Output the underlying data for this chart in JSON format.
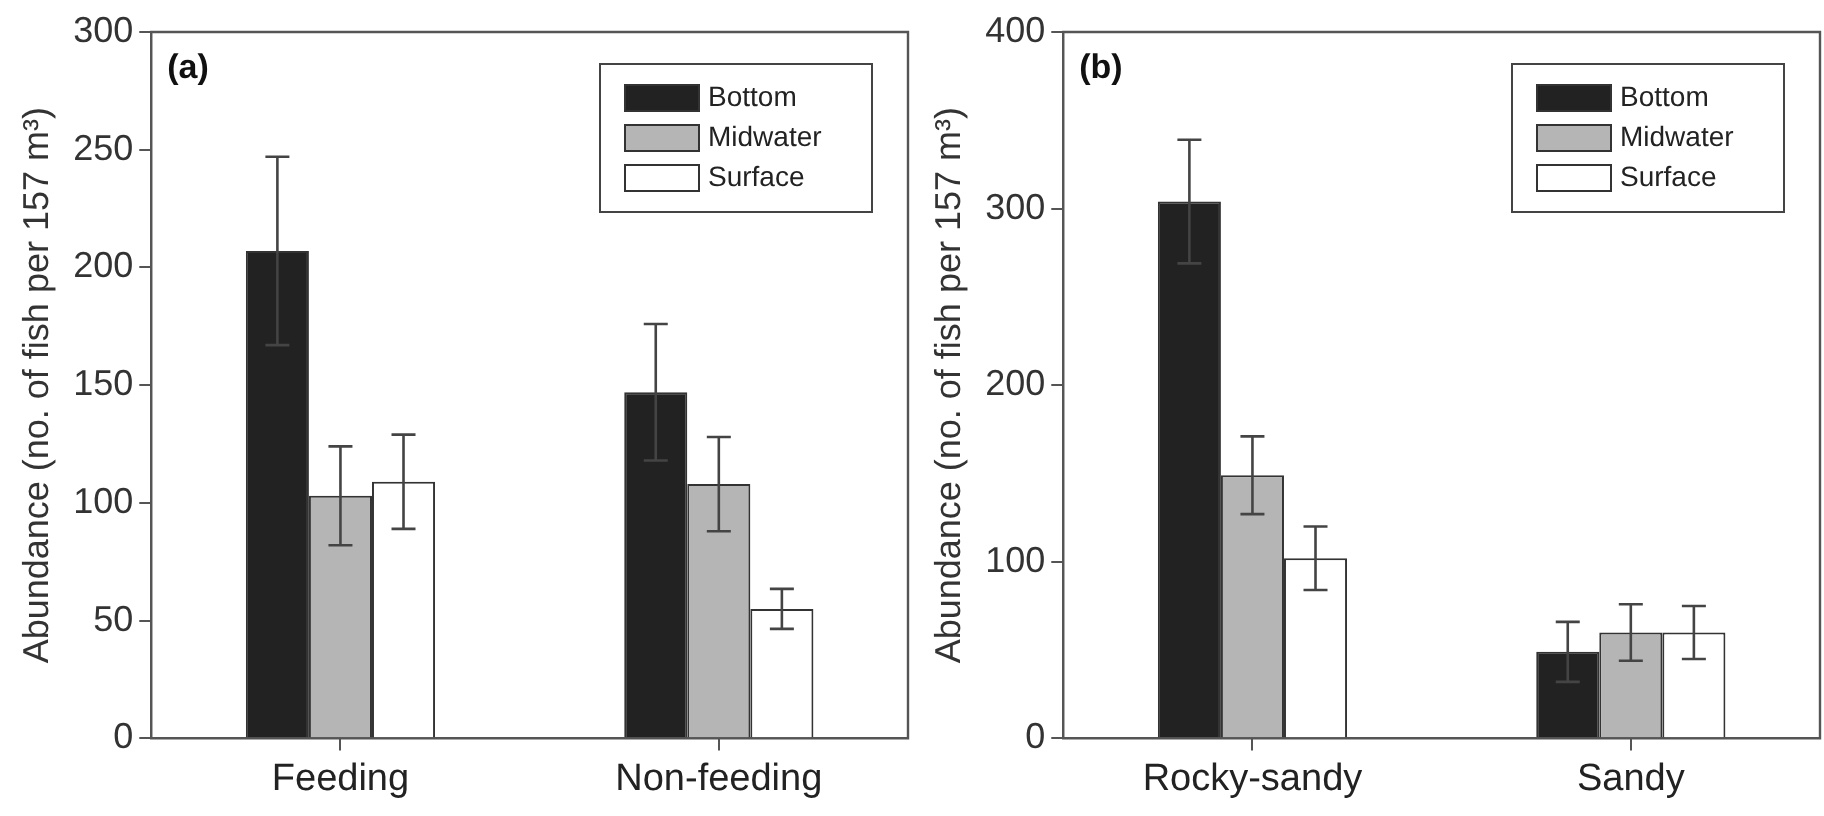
{
  "chart_data": [
    {
      "type": "bar",
      "ylabel": "Abundance (no. of fish per 157 m³)",
      "annotations": [
        "(a)"
      ],
      "categories": [
        "Feeding",
        "Non-feeding"
      ],
      "ylim": [
        0,
        300
      ],
      "yticks": [
        0,
        50,
        100,
        150,
        200,
        250,
        300
      ],
      "grid": false,
      "legend": "top right",
      "series": [
        {
          "name": "Bottom",
          "color": "#222222",
          "values": [
            207,
            147
          ],
          "errors": [
            40,
            29
          ]
        },
        {
          "name": "Midwater",
          "color": "#b5b5b5",
          "values": [
            103,
            108
          ],
          "errors": [
            21,
            20
          ]
        },
        {
          "name": "Surface",
          "color": "#ffffff",
          "values": [
            109,
            55
          ],
          "errors": [
            20,
            8.5
          ]
        }
      ]
    },
    {
      "type": "bar",
      "ylabel": "Abundance (no. of fish per 157 m³)",
      "annotations": [
        "(b)"
      ],
      "categories": [
        "Rocky-sandy",
        "Sandy"
      ],
      "ylim": [
        0,
        400
      ],
      "yticks": [
        0,
        100,
        200,
        300,
        400
      ],
      "grid": false,
      "legend": "top right",
      "series": [
        {
          "name": "Bottom",
          "color": "#222222",
          "values": [
            304,
            49
          ],
          "errors": [
            35,
            17
          ]
        },
        {
          "name": "Midwater",
          "color": "#b5b5b5",
          "values": [
            149,
            60
          ],
          "errors": [
            22,
            16
          ]
        },
        {
          "name": "Surface",
          "color": "#ffffff",
          "values": [
            102,
            60
          ],
          "errors": [
            18,
            15
          ]
        }
      ]
    }
  ]
}
